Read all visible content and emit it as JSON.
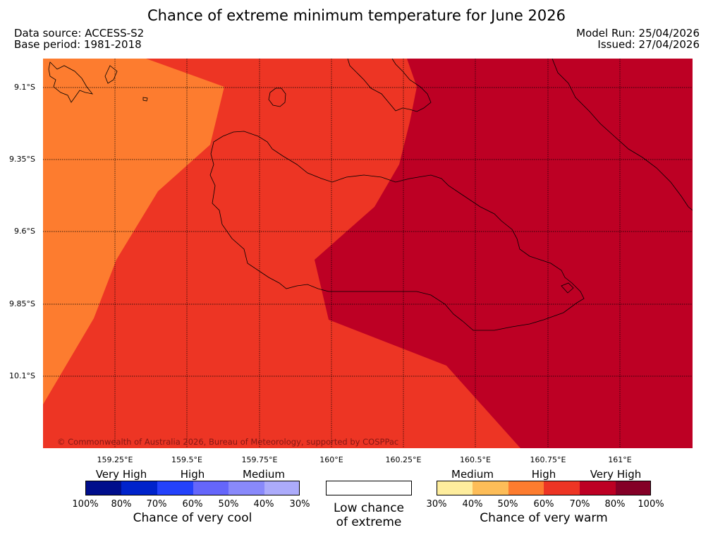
{
  "title": "Chance of extreme minimum temperature for June 2026",
  "meta": {
    "data_source": "Data source: ACCESS-S2",
    "base_period": "Base period: 1981-2018",
    "model_run": "Model Run: 25/04/2026",
    "issued": "Issued: 27/04/2026"
  },
  "map": {
    "lat_labels": [
      "9.1°S",
      "9.35°S",
      "9.6°S",
      "9.85°S",
      "10.1°S"
    ],
    "lon_labels": [
      "159.25°E",
      "159.5°E",
      "159.75°E",
      "160°E",
      "160.25°E",
      "160.5°E",
      "160.75°E",
      "161°E"
    ],
    "copyright": "© Commonwealth of Australia 2026, Bureau of Meteorology, supported by COSPPac",
    "zone_colors": {
      "warm_50_60": "#fd7c2f",
      "warm_60_70": "#ed3524",
      "warm_70_80": "#bd0024"
    }
  },
  "legend": {
    "cool": {
      "levels": [
        "Very High",
        "High",
        "Medium"
      ],
      "colors": [
        "#000e8c",
        "#0023cb",
        "#2442fb",
        "#6566fb",
        "#8989fb",
        "#acabfb"
      ],
      "percents": [
        "100%",
        "80%",
        "70%",
        "60%",
        "50%",
        "40%",
        "30%"
      ],
      "caption": "Chance of very cool"
    },
    "low": {
      "line1": "Low chance",
      "line2": "of extreme"
    },
    "warm": {
      "levels": [
        "Medium",
        "High",
        "Very High"
      ],
      "colors": [
        "#feed9d",
        "#fdbd58",
        "#fd7c2f",
        "#ed3524",
        "#bd0024",
        "#840027"
      ],
      "percents": [
        "30%",
        "40%",
        "50%",
        "60%",
        "70%",
        "80%",
        "100%"
      ],
      "caption": "Chance of very warm"
    }
  }
}
